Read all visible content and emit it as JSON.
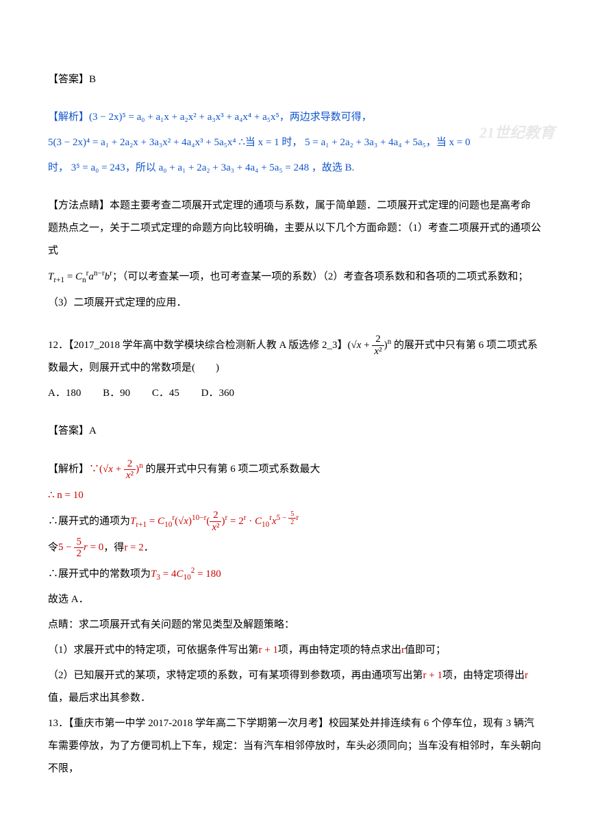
{
  "watermark": "21世纪教育",
  "answer11": {
    "label": "【答案】",
    "value": "B"
  },
  "analysis11": {
    "label": "【解析】",
    "expansion": "(3 − 2x)⁵ = a₀ + a₁x + a₂x² + a₃x³ + a₄x⁴ + a₅x⁵",
    "tail1": "，两边求导数可得，",
    "line2a": "5(3 − 2x)⁴ = a₁ + 2a₂x  + 3a₃x² + 4a₄x³ + 5a₅x⁴",
    "line2b": "∴当 x = 1 时，",
    "line2c": "5 = a₁ + 2a₂ + 3a₃ + 4a₄ + 5a₅",
    "line2d": "，当 x = 0",
    "line3a": "时，",
    "line3b": "3⁵ = a₀ = 243",
    "line3c": "，所以 a₀ + a₁ + 2a₂ + 3a₃ + 4a₄ + 5a₅ = 248 ，故选 B."
  },
  "method11": {
    "label": "【方法点睛】",
    "text1": "本题主要考查二项展开式定理的通项与系数，属于简单题．二项展开式定理的问题也是高考命题热点之一，关于二项式定理的命题方向比较明确，主要从以下几个方面命题：（1）考查二项展开式的通项公式",
    "formula": "T_{r+1} = C_n^r a^{n−r} b^r",
    "text2": "；（可以考查某一项，也可考查某一项的系数）（2）考查各项系数和和各项的二项式系数和；",
    "text3": "（3）二项展开式定理的应用．"
  },
  "q12": {
    "number": "12．",
    "source": "【2017_2018 学年高中数学模块综合检测新人教 A 版选修 2_3】",
    "formula_img": "(√x + 2/x²)ⁿ",
    "tail": " 的展开式中只有第 6 项二项式系数最大，则展开式中的常数项是(　　)",
    "choices": {
      "A": "A．180",
      "B": "B．90",
      "C": "C．45",
      "D": "D．360"
    }
  },
  "answer12": {
    "label": "【答案】",
    "value": "A"
  },
  "analysis12": {
    "label": "【解析】",
    "lead": "∵",
    "formula1": "(√x + 2/x²)ⁿ",
    "tail1": " 的展开式中只有第 6 项二项式系数最大",
    "line_n": "∴ n = 10",
    "expand_label": "∴展开式的通项为",
    "expand_formula": "T_{r+1} = C_{10}^r (√x)^{10−r} (2/x²)^r = 2^r · C_{10}^r x^{5 − (5/2)r}",
    "let_label": "令",
    "let_formula": "5 − (5/2)r = 0",
    "let_tail": "，得",
    "let_r": "r = 2",
    "let_period": "．",
    "const_label": "∴展开式中的常数项为",
    "const_formula": "T₃ = 4C_{10}^2 = 180",
    "therefore": "故选 A．"
  },
  "dianjing": {
    "label": "点睛：",
    "text0": "求二项展开式有关问题的常见类型及解题策略：",
    "item1a": "（1）求展开式中的特定项，可依据条件写出第",
    "item1b": "r + 1",
    "item1c": "项，再由特定项的特点求出",
    "item1d": "r",
    "item1e": "值即可；",
    "item2a": "（2）已知展开式的某项，求特定项的系数，可有某项得到参数项，再由通项写出第",
    "item2b": "r + 1",
    "item2c": "项，由特定项得出",
    "item2d": "r",
    "item2e": "值，最后求出其参数．"
  },
  "q13": {
    "number": "13．",
    "source": "【重庆市第一中学 2017-2018 学年高二下学期第一次月考】",
    "text": "校园某处并排连续有 6 个停车位，现有 3 辆汽车需要停放，为了方便司机上下车，规定：当有汽车相邻停放时，车头必须同向；当车没有相邻时，车头朝向不限，"
  }
}
